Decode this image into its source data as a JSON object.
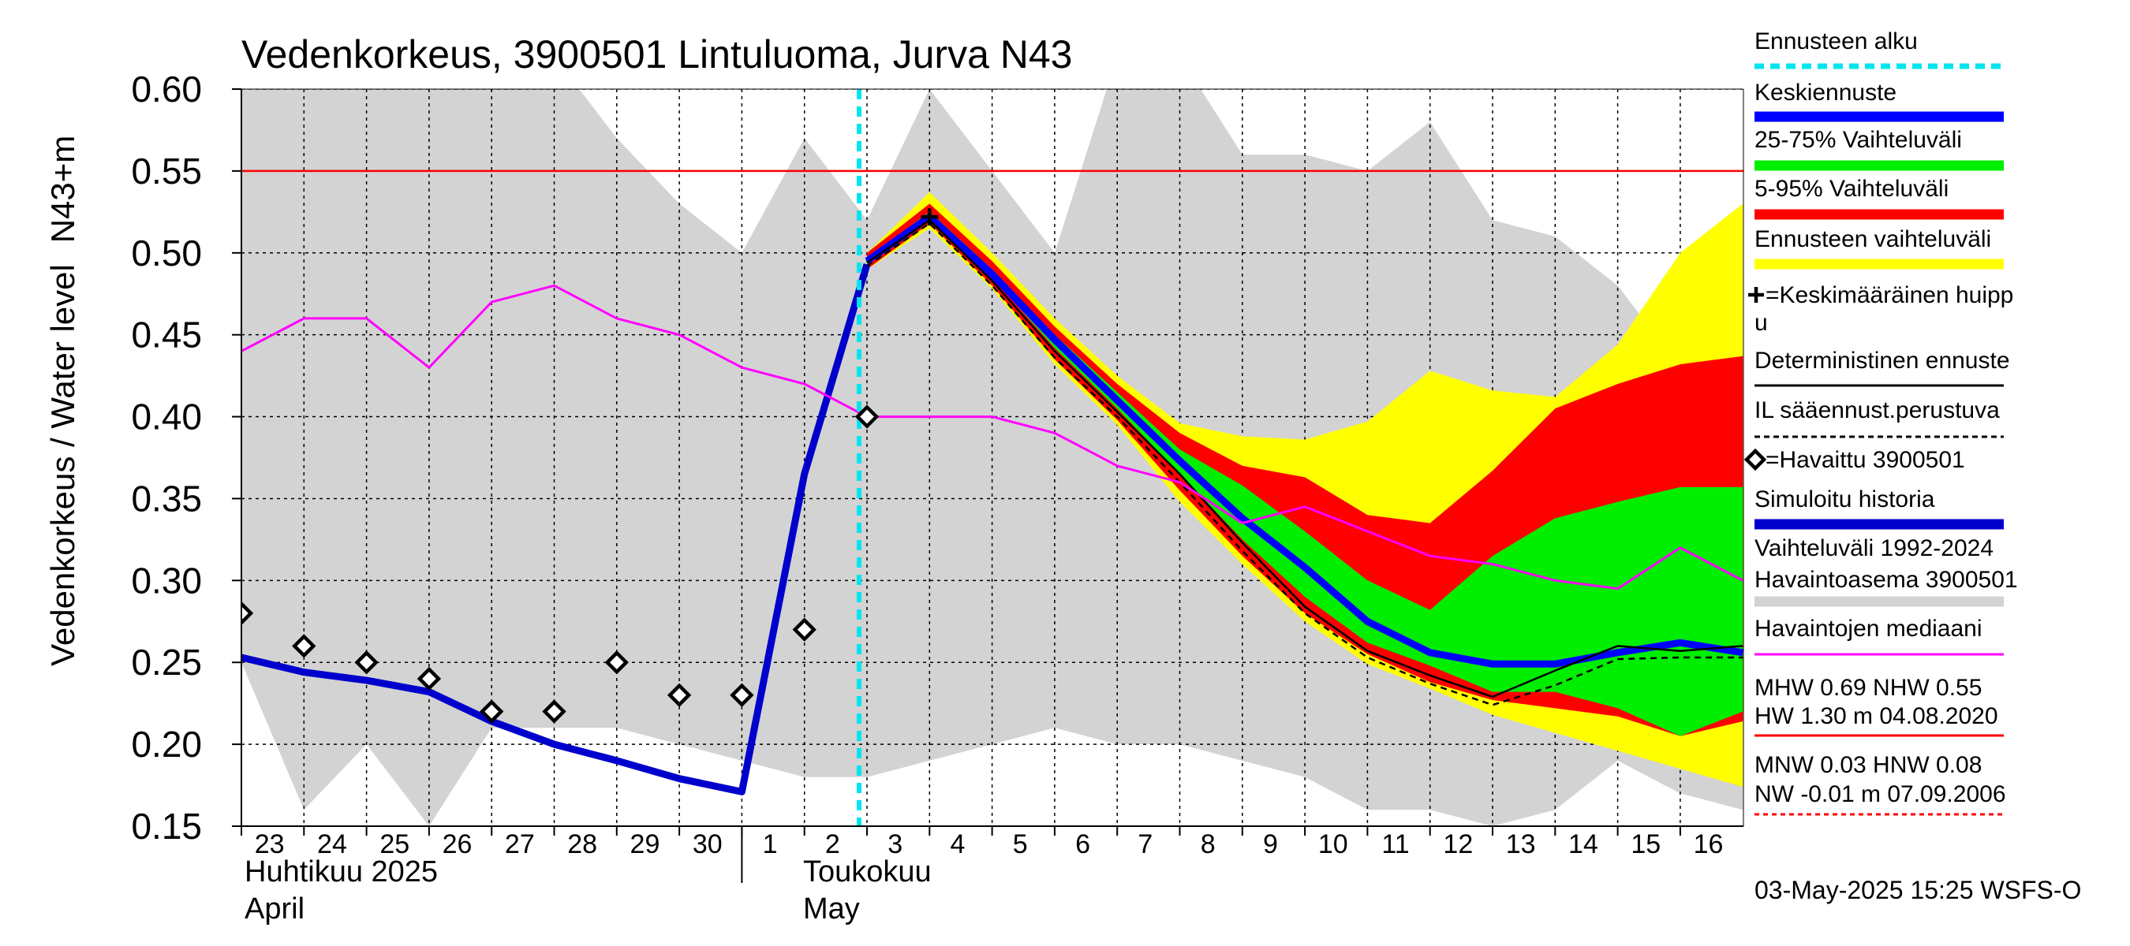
{
  "chart_data": {
    "type": "area",
    "title": "Vedenkorkeus, 3900501 Lintuluoma, Jurva N43",
    "ylabel_primary": "Vedenkorkeus / Water level",
    "ylabel_secondary": "N43+m",
    "ylim": [
      0.15,
      0.6
    ],
    "y_ticks": [
      "0.60",
      "0.55",
      "0.50",
      "0.45",
      "0.40",
      "0.35",
      "0.30",
      "0.25",
      "0.20",
      "0.15"
    ],
    "x_days": [
      "23",
      "24",
      "25",
      "26",
      "27",
      "28",
      "29",
      "30",
      "1",
      "2",
      "3",
      "4",
      "5",
      "6",
      "7",
      "8",
      "9",
      "10",
      "11",
      "12",
      "13",
      "14",
      "15",
      "16"
    ],
    "x_month_labels": {
      "april_fi": "Huhtikuu  2025",
      "april_en": "April",
      "may_fi": "Toukokuu",
      "may_en": "May"
    },
    "grid": true,
    "forecast_start_index": 10,
    "reference_line": {
      "value": 0.55,
      "color": "#ff0000"
    },
    "historical_range": {
      "upper": [
        0.62,
        0.62,
        0.62,
        0.62,
        0.62,
        0.62,
        0.57,
        0.53,
        0.5,
        0.57,
        0.52,
        0.6,
        0.55,
        0.5,
        0.62,
        0.62,
        0.56,
        0.56,
        0.55,
        0.58,
        0.52,
        0.51,
        0.48,
        0.43,
        0.43
      ],
      "lower": [
        0.25,
        0.16,
        0.2,
        0.15,
        0.21,
        0.21,
        0.21,
        0.2,
        0.19,
        0.18,
        0.18,
        0.19,
        0.2,
        0.21,
        0.2,
        0.2,
        0.19,
        0.18,
        0.16,
        0.16,
        0.15,
        0.16,
        0.19,
        0.17,
        0.16
      ]
    },
    "forecast_x": [
      10,
      11,
      12,
      13,
      14,
      15,
      16,
      17,
      18,
      19,
      20,
      21,
      22,
      23,
      24
    ],
    "band_forecast_range": {
      "upper": [
        0.5,
        0.537,
        0.5,
        0.46,
        0.425,
        0.396,
        0.388,
        0.386,
        0.397,
        0.428,
        0.416,
        0.412,
        0.444,
        0.5,
        0.53
      ],
      "lower": [
        0.49,
        0.515,
        0.478,
        0.432,
        0.395,
        0.348,
        0.31,
        0.275,
        0.249,
        0.234,
        0.218,
        0.207,
        0.196,
        0.185,
        0.174
      ]
    },
    "band_5_95": {
      "upper": [
        0.5,
        0.53,
        0.495,
        0.455,
        0.42,
        0.39,
        0.37,
        0.363,
        0.34,
        0.335,
        0.367,
        0.405,
        0.42,
        0.432,
        0.437
      ],
      "lower": [
        0.49,
        0.518,
        0.48,
        0.435,
        0.398,
        0.355,
        0.315,
        0.28,
        0.255,
        0.238,
        0.227,
        0.222,
        0.217,
        0.205,
        0.214
      ]
    },
    "band_25_75": {
      "upper": [
        0.497,
        0.525,
        0.49,
        0.45,
        0.415,
        0.38,
        0.358,
        0.33,
        0.3,
        0.282,
        0.315,
        0.338,
        0.348,
        0.357,
        0.357
      ],
      "lower": [
        0.493,
        0.52,
        0.485,
        0.442,
        0.405,
        0.365,
        0.325,
        0.29,
        0.262,
        0.248,
        0.232,
        0.232,
        0.222,
        0.205,
        0.22
      ]
    },
    "series": [
      {
        "name": "Simuloitu historia",
        "color": "#0000cc",
        "x": [
          0,
          1,
          2,
          3,
          4,
          5,
          6,
          7,
          8,
          9,
          10
        ],
        "values": [
          0.253,
          0.244,
          0.239,
          0.232,
          0.214,
          0.2,
          0.19,
          0.179,
          0.171,
          0.365,
          0.493
        ]
      },
      {
        "name": "Keskiennuste",
        "color": "#0000ff",
        "x": [
          10,
          11,
          12,
          13,
          14,
          15,
          16,
          17,
          18,
          19,
          20,
          21,
          22,
          23,
          24
        ],
        "values": [
          0.495,
          0.522,
          0.487,
          0.447,
          0.41,
          0.373,
          0.338,
          0.308,
          0.275,
          0.256,
          0.249,
          0.249,
          0.256,
          0.262,
          0.256
        ]
      },
      {
        "name": "Deterministinen ennuste",
        "color": "#000000",
        "x": [
          10,
          11,
          12,
          13,
          14,
          15,
          16,
          17,
          18,
          19,
          20,
          21,
          22,
          23,
          24
        ],
        "values": [
          0.494,
          0.52,
          0.483,
          0.44,
          0.403,
          0.365,
          0.323,
          0.284,
          0.257,
          0.242,
          0.229,
          0.245,
          0.26,
          0.257,
          0.26
        ]
      },
      {
        "name": "IL sääennust.perustuva",
        "color": "#000000",
        "dashed": true,
        "x": [
          10,
          11,
          12,
          13,
          14,
          15,
          16,
          17,
          18,
          19,
          20,
          21,
          22,
          23,
          24
        ],
        "values": [
          0.492,
          0.518,
          0.48,
          0.436,
          0.4,
          0.36,
          0.318,
          0.28,
          0.253,
          0.237,
          0.224,
          0.236,
          0.252,
          0.253,
          0.253
        ]
      },
      {
        "name": "Havaintojen mediaani",
        "color": "#ff00ff",
        "x": [
          0,
          1,
          2,
          3,
          4,
          5,
          6,
          7,
          8,
          9,
          10,
          11,
          12,
          13,
          14,
          15,
          16,
          17,
          18,
          19,
          20,
          21,
          22,
          23,
          24
        ],
        "values": [
          0.44,
          0.46,
          0.46,
          0.43,
          0.47,
          0.48,
          0.46,
          0.45,
          0.43,
          0.42,
          0.4,
          0.4,
          0.4,
          0.39,
          0.37,
          0.36,
          0.335,
          0.345,
          0.33,
          0.315,
          0.31,
          0.3,
          0.295,
          0.32,
          0.3
        ]
      }
    ],
    "observed": {
      "name": "=Havaittu 3900501",
      "x": [
        0,
        1,
        2,
        3,
        4,
        5,
        6,
        7,
        8,
        9,
        10
      ],
      "values": [
        0.28,
        0.26,
        0.25,
        0.24,
        0.22,
        0.22,
        0.25,
        0.23,
        0.23,
        0.27,
        0.4
      ]
    },
    "mean_peak": {
      "x": 11,
      "value": 0.522
    },
    "legend": {
      "items": [
        {
          "label": "Ennusteen alku",
          "color": "#00e5ee",
          "style": "dashed"
        },
        {
          "label": "Keskiennuste",
          "color": "#0000ff",
          "style": "thick"
        },
        {
          "label": "25-75% Vaihteluväli",
          "color": "#00ee00",
          "style": "thick"
        },
        {
          "label": "5-95% Vaihteluväli",
          "color": "#ff0000",
          "style": "thick"
        },
        {
          "label": "Ennusteen vaihteluväli",
          "color": "#ffff00",
          "style": "thick"
        },
        {
          "label": "=Keskimääräinen huipp",
          "label2": "u",
          "marker": "plus"
        },
        {
          "label": "Deterministinen ennuste",
          "color": "#000000",
          "style": "thin"
        },
        {
          "label": "IL sääennust.perustuva",
          "color": "#000000",
          "style": "dashed"
        },
        {
          "label": "=Havaittu 3900501",
          "marker": "diamond"
        },
        {
          "label": "Simuloitu historia",
          "color": "#0000cc",
          "style": "thick"
        },
        {
          "label": "Vaihteluväli 1992-2024",
          "label2": " Havaintoasema 3900501",
          "color": "#d3d3d3",
          "style": "thick"
        },
        {
          "label": "Havaintojen mediaani",
          "color": "#ff00ff",
          "style": "thin"
        }
      ],
      "stats1": [
        "MHW   0.69 NHW   0.55",
        "HW   1.30 m 04.08.2020"
      ],
      "stats1_color": "#ff0000",
      "stats2": [
        "MNW   0.03 HNW   0.08",
        "NW  -0.01 m 07.09.2006"
      ],
      "stats2_color": "#ff0000"
    },
    "footer": "03-May-2025 15:25 WSFS-O"
  }
}
